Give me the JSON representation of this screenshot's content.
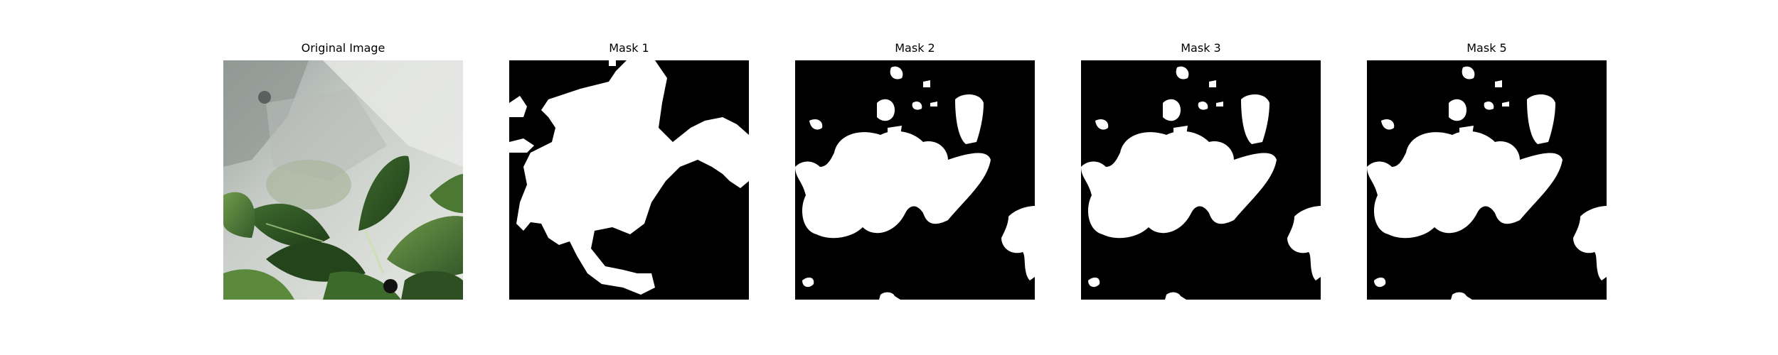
{
  "figure": {
    "panels": [
      {
        "id": "original",
        "title": "Original Image"
      },
      {
        "id": "mask1",
        "title": "Mask 1"
      },
      {
        "id": "mask2",
        "title": "Mask 2"
      },
      {
        "id": "mask3",
        "title": "Mask 3"
      },
      {
        "id": "mask5",
        "title": "Mask 5"
      }
    ]
  },
  "colors": {
    "background": "#ffffff",
    "mask_background": "#000000",
    "mask_foreground": "#ffffff"
  }
}
